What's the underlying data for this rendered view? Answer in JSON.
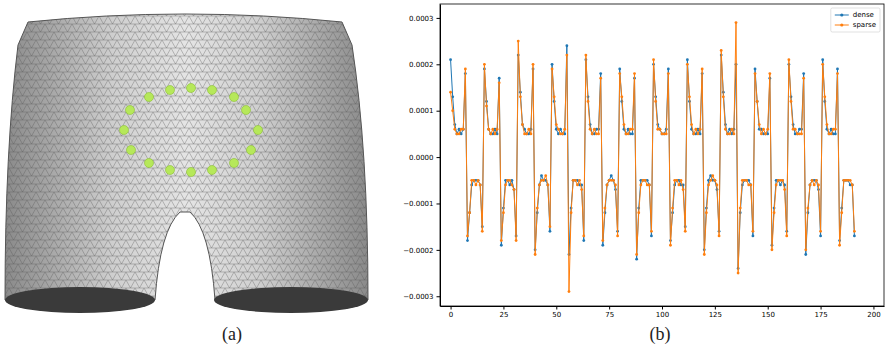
{
  "panel_labels": [
    "(a)",
    "(b)"
  ],
  "chart_data": {
    "type": "line",
    "x": [
      0,
      1,
      2,
      3,
      4,
      5,
      6,
      7,
      8,
      9,
      10,
      11,
      12,
      13,
      14,
      15,
      16,
      17,
      18,
      19,
      20,
      21,
      22,
      23,
      24,
      25,
      26,
      27,
      28,
      29,
      30,
      31,
      32,
      33,
      34,
      35,
      36,
      37,
      38,
      39,
      40,
      41,
      42,
      43,
      44,
      45,
      46,
      47,
      48,
      49,
      50,
      51,
      52,
      53,
      54,
      55,
      56,
      57,
      58,
      59,
      60,
      61,
      62,
      63,
      64,
      65,
      66,
      67,
      68,
      69,
      70,
      71,
      72,
      73,
      74,
      75,
      76,
      77,
      78,
      79,
      80,
      81,
      82,
      83,
      84,
      85,
      86,
      87,
      88,
      89,
      90,
      91,
      92,
      93,
      94,
      95,
      96,
      97,
      98,
      99,
      100,
      101,
      102,
      103,
      104,
      105,
      106,
      107,
      108,
      109,
      110,
      111,
      112,
      113,
      114,
      115,
      116,
      117,
      118,
      119,
      120,
      121,
      122,
      123,
      124,
      125,
      126,
      127,
      128,
      129,
      130,
      131,
      132,
      133,
      134,
      135,
      136,
      137,
      138,
      139,
      140,
      141,
      142,
      143,
      144,
      145,
      146,
      147,
      148,
      149,
      150,
      151,
      152,
      153,
      154,
      155,
      156,
      157,
      158,
      159,
      160,
      161,
      162,
      163,
      164,
      165,
      166,
      167,
      168,
      169,
      170,
      171,
      172,
      173,
      174,
      175,
      176,
      177,
      178,
      179,
      180,
      181,
      182,
      183,
      184,
      185,
      186,
      187,
      188,
      189,
      190,
      191
    ],
    "series": [
      {
        "name": "dense",
        "color": "#1f77b4",
        "marker": "circle",
        "line_style": "solid",
        "values": [
          0.00021,
          0.00013,
          7e-05,
          5e-05,
          6e-05,
          5e-05,
          6e-05,
          0.00018,
          -0.00018,
          -0.00012,
          -6e-05,
          -5e-05,
          -5e-05,
          -5e-05,
          -6e-05,
          -0.00015,
          0.00019,
          0.00012,
          6e-05,
          5e-05,
          5e-05,
          6e-05,
          5e-05,
          0.00017,
          -0.00019,
          -0.00011,
          -5e-05,
          -5e-05,
          -6e-05,
          -5e-05,
          -7e-05,
          -0.00017,
          0.00022,
          0.00014,
          7e-05,
          6e-05,
          5e-05,
          5e-05,
          6e-05,
          0.00019,
          -0.0002,
          -0.00012,
          -6e-05,
          -4e-05,
          -5e-05,
          -5e-05,
          -6e-05,
          -0.00016,
          0.0002,
          0.00012,
          6e-05,
          5e-05,
          6e-05,
          5e-05,
          5e-05,
          0.00024,
          -0.00021,
          -0.00011,
          -5e-05,
          -5e-05,
          -5e-05,
          -6e-05,
          -6e-05,
          -0.00018,
          0.00021,
          0.00013,
          7e-05,
          5e-05,
          5e-05,
          6e-05,
          6e-05,
          0.00018,
          -0.00019,
          -0.00012,
          -6e-05,
          -5e-05,
          -4e-05,
          -5e-05,
          -7e-05,
          -0.00016,
          0.00019,
          0.00012,
          6e-05,
          5e-05,
          6e-05,
          5e-05,
          5e-05,
          0.00017,
          -0.00022,
          -0.00011,
          -5e-05,
          -5e-05,
          -5e-05,
          -5e-05,
          -6e-05,
          -0.00017,
          0.0002,
          0.00013,
          7e-05,
          6e-05,
          5e-05,
          5e-05,
          6e-05,
          0.00019,
          -0.00018,
          -0.00012,
          -6e-05,
          -5e-05,
          -5e-05,
          -6e-05,
          -6e-05,
          -0.00015,
          0.00021,
          0.00012,
          6e-05,
          5e-05,
          5e-05,
          6e-05,
          5e-05,
          0.00018,
          -0.0002,
          -0.00011,
          -5e-05,
          -4e-05,
          -5e-05,
          -5e-05,
          -7e-05,
          -0.00016,
          0.00022,
          0.00014,
          7e-05,
          5e-05,
          6e-05,
          5e-05,
          6e-05,
          0.0002,
          -0.00024,
          -0.00012,
          -6e-05,
          -5e-05,
          -5e-05,
          -5e-05,
          -6e-05,
          -0.00017,
          0.00019,
          0.00012,
          6e-05,
          6e-05,
          5e-05,
          5e-05,
          5e-05,
          0.00017,
          -0.00019,
          -0.00011,
          -5e-05,
          -5e-05,
          -6e-05,
          -5e-05,
          -6e-05,
          -0.00016,
          0.0002,
          0.00013,
          7e-05,
          5e-05,
          5e-05,
          6e-05,
          6e-05,
          0.00018,
          -0.00021,
          -0.00012,
          -6e-05,
          -5e-05,
          -5e-05,
          -5e-05,
          -7e-05,
          -0.00017,
          0.00021,
          0.00012,
          6e-05,
          5e-05,
          6e-05,
          5e-05,
          5e-05,
          0.00019,
          -0.00018,
          -0.00011,
          -5e-05,
          -5e-05,
          -5e-05,
          -6e-05,
          -6e-05,
          -0.00017
        ]
      },
      {
        "name": "sparse",
        "color": "#ff7f0e",
        "marker": "circle",
        "line_style": "solid",
        "values": [
          0.00014,
          0.0001,
          6e-05,
          5e-05,
          5e-05,
          6e-05,
          6e-05,
          0.00019,
          -0.00017,
          -0.00012,
          -5e-05,
          -5e-05,
          -6e-05,
          -5e-05,
          -6e-05,
          -0.00016,
          0.0002,
          0.00011,
          6e-05,
          5e-05,
          6e-05,
          5e-05,
          6e-05,
          0.00016,
          -0.00018,
          -0.00012,
          -6e-05,
          -5e-05,
          -5e-05,
          -6e-05,
          -7e-05,
          -0.00018,
          0.00025,
          0.00013,
          7e-05,
          5e-05,
          5e-05,
          6e-05,
          5e-05,
          0.0002,
          -0.00021,
          -0.00011,
          -6e-05,
          -5e-05,
          -5e-05,
          -4e-05,
          -6e-05,
          -0.00015,
          0.00019,
          0.00013,
          7e-05,
          6e-05,
          5e-05,
          5e-05,
          6e-05,
          0.00022,
          -0.00029,
          -0.00012,
          -5e-05,
          -5e-05,
          -6e-05,
          -5e-05,
          -7e-05,
          -0.00017,
          0.00022,
          0.00012,
          6e-05,
          5e-05,
          6e-05,
          5e-05,
          5e-05,
          0.00017,
          -0.00018,
          -0.00011,
          -6e-05,
          -5e-05,
          -5e-05,
          -5e-05,
          -6e-05,
          -0.00017,
          0.00018,
          0.00013,
          7e-05,
          5e-05,
          5e-05,
          6e-05,
          6e-05,
          0.00018,
          -0.00021,
          -0.00012,
          -6e-05,
          -5e-05,
          -5e-05,
          -6e-05,
          -6e-05,
          -0.00016,
          0.00021,
          0.00012,
          6e-05,
          6e-05,
          5e-05,
          5e-05,
          5e-05,
          0.00018,
          -0.00019,
          -0.00011,
          -5e-05,
          -5e-05,
          -6e-05,
          -5e-05,
          -7e-05,
          -0.00016,
          0.0002,
          0.00013,
          7e-05,
          5e-05,
          6e-05,
          5e-05,
          6e-05,
          0.00019,
          -0.00021,
          -0.00012,
          -6e-05,
          -5e-05,
          -4e-05,
          -5e-05,
          -6e-05,
          -0.00017,
          0.00023,
          0.00013,
          6e-05,
          5e-05,
          5e-05,
          6e-05,
          5e-05,
          0.00029,
          -0.00025,
          -0.00011,
          -5e-05,
          -5e-05,
          -5e-05,
          -6e-05,
          -6e-05,
          -0.00016,
          0.00018,
          0.00012,
          7e-05,
          5e-05,
          6e-05,
          5e-05,
          6e-05,
          0.00018,
          -0.0002,
          -0.00012,
          -6e-05,
          -5e-05,
          -5e-05,
          -5e-05,
          -7e-05,
          -0.00017,
          0.00021,
          0.00012,
          6e-05,
          6e-05,
          5e-05,
          5e-05,
          5e-05,
          0.00017,
          -0.0002,
          -0.00011,
          -6e-05,
          -5e-05,
          -6e-05,
          -5e-05,
          -6e-05,
          -0.00016,
          0.0002,
          0.00013,
          7e-05,
          5e-05,
          5e-05,
          6e-05,
          6e-05,
          0.00018,
          -0.00019,
          -0.00012,
          -5e-05,
          -5e-05,
          -5e-05,
          -5e-05,
          -6e-05,
          -0.00016
        ]
      }
    ],
    "xlim": [
      -5,
      205
    ],
    "xticks": [
      0,
      25,
      50,
      75,
      100,
      125,
      150,
      175,
      200
    ],
    "ylim": [
      -0.000321,
      0.00033
    ],
    "yticks": [
      {
        "value": 0.0003,
        "label": "0.0003"
      },
      {
        "value": 0.0002,
        "label": "0.0002"
      },
      {
        "value": 0.0001,
        "label": "0.0001"
      },
      {
        "value": 0,
        "label": "0.0000"
      },
      {
        "value": -0.0001,
        "label": "−0.0001"
      },
      {
        "value": -0.0002,
        "label": "−0.0002"
      },
      {
        "value": -0.0003,
        "label": "−0.0003"
      }
    ],
    "grid": false,
    "legend": "upper right"
  }
}
